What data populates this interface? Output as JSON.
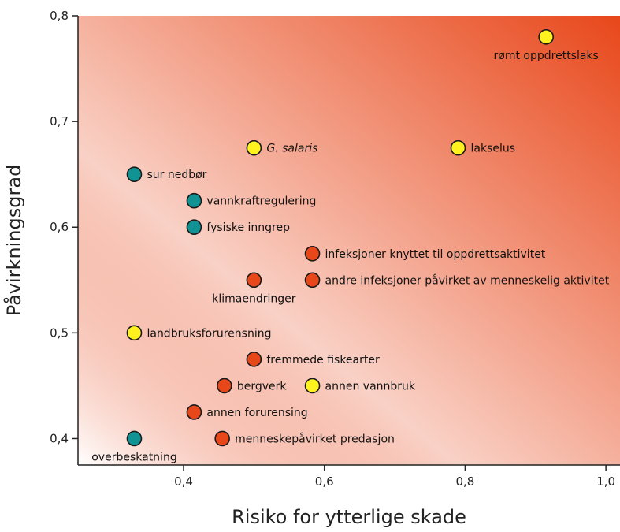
{
  "chart_data": {
    "type": "scatter",
    "title": "",
    "xlabel": "Risiko for ytterlige skade",
    "ylabel": "Påvirkningsgrad",
    "xlim": [
      0.25,
      1.02
    ],
    "ylim": [
      0.375,
      0.8
    ],
    "xticks": [
      0.4,
      0.6,
      0.8,
      1.0
    ],
    "xtick_labels": [
      "0,4",
      "0,6",
      "0,8",
      "1,0"
    ],
    "yticks": [
      0.4,
      0.5,
      0.6,
      0.7,
      0.8
    ],
    "ytick_labels": [
      "0,4",
      "0,5",
      "0,6",
      "0,7",
      "0,8"
    ],
    "grid": false,
    "background": "gradient from white (bottom-left) to orange-red (top-right)",
    "gradient_colors": [
      "#ffffff",
      "#e8471a"
    ],
    "category_colors": {
      "yellow": "#fff21e",
      "teal": "#129393",
      "orange": "#e8471a"
    },
    "points": [
      {
        "label": "rømt oppdrettslaks",
        "x": 0.915,
        "y": 0.78,
        "color": "yellow",
        "label_pos": "below"
      },
      {
        "label": "G. salaris",
        "x": 0.5,
        "y": 0.675,
        "color": "yellow",
        "label_pos": "right",
        "italic": true
      },
      {
        "label": "lakselus",
        "x": 0.79,
        "y": 0.675,
        "color": "yellow",
        "label_pos": "right"
      },
      {
        "label": "sur nedbør",
        "x": 0.33,
        "y": 0.65,
        "color": "teal",
        "label_pos": "right"
      },
      {
        "label": "vannkraftregulering",
        "x": 0.415,
        "y": 0.625,
        "color": "teal",
        "label_pos": "right"
      },
      {
        "label": "fysiske inngrep",
        "x": 0.415,
        "y": 0.6,
        "color": "teal",
        "label_pos": "right"
      },
      {
        "label": "infeksjoner knyttet til oppdrettsaktivitet",
        "x": 0.583,
        "y": 0.575,
        "color": "orange",
        "label_pos": "right"
      },
      {
        "label": "klimaendringer",
        "x": 0.5,
        "y": 0.55,
        "color": "orange",
        "label_pos": "below"
      },
      {
        "label": "andre infeksjoner påvirket av menneskelig aktivitet",
        "x": 0.583,
        "y": 0.55,
        "color": "orange",
        "label_pos": "right"
      },
      {
        "label": "landbruksforurensning",
        "x": 0.33,
        "y": 0.5,
        "color": "yellow",
        "label_pos": "right"
      },
      {
        "label": "fremmede fiskearter",
        "x": 0.5,
        "y": 0.475,
        "color": "orange",
        "label_pos": "right"
      },
      {
        "label": "bergverk",
        "x": 0.458,
        "y": 0.45,
        "color": "orange",
        "label_pos": "right"
      },
      {
        "label": "annen vannbruk",
        "x": 0.583,
        "y": 0.45,
        "color": "yellow",
        "label_pos": "right"
      },
      {
        "label": "annen forurensing",
        "x": 0.415,
        "y": 0.425,
        "color": "orange",
        "label_pos": "right"
      },
      {
        "label": "overbeskatning",
        "x": 0.33,
        "y": 0.4,
        "color": "teal",
        "label_pos": "below"
      },
      {
        "label": "menneskepåvirket predasjon",
        "x": 0.455,
        "y": 0.4,
        "color": "orange",
        "label_pos": "right"
      }
    ]
  }
}
